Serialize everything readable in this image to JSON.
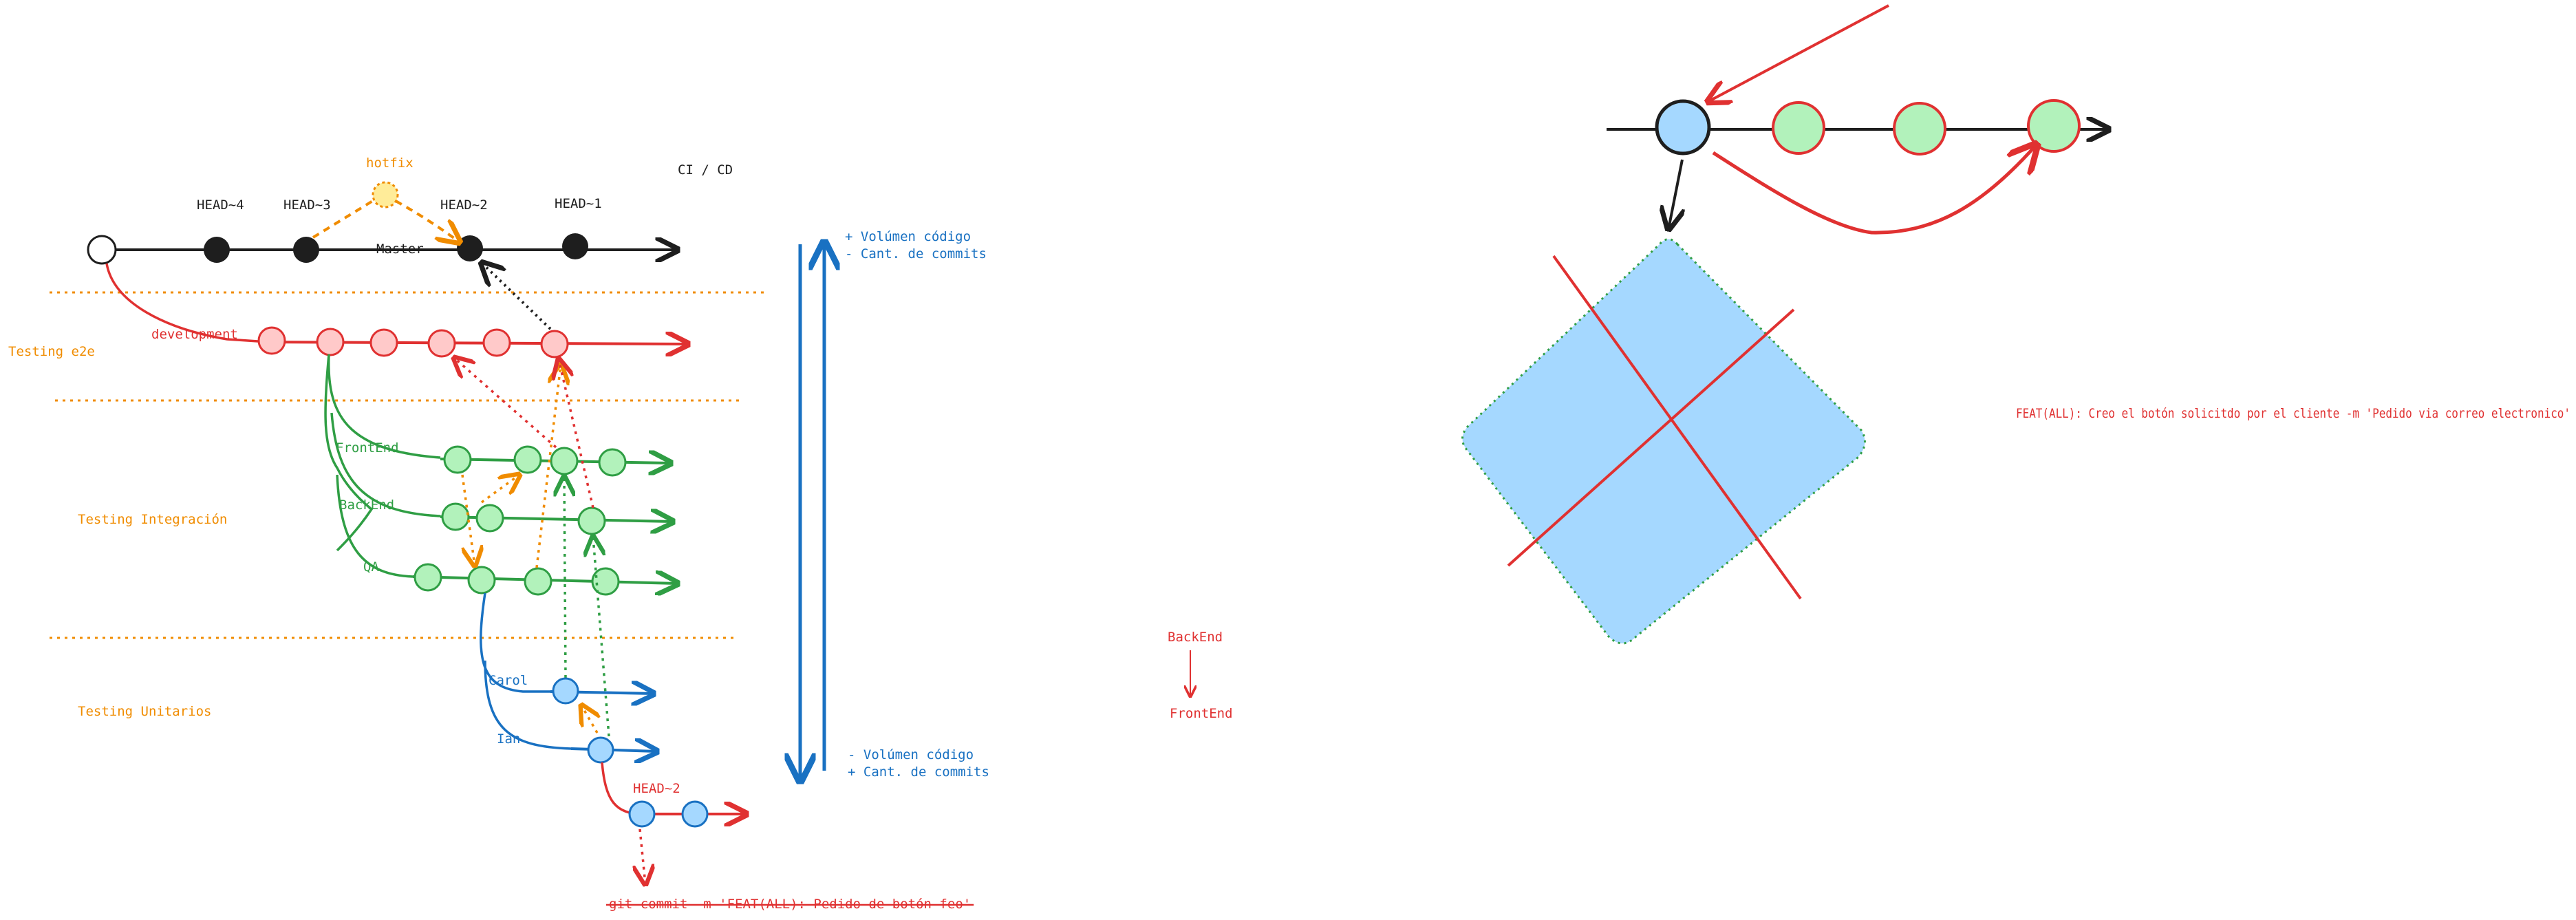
{
  "git_diagram": {
    "labels": {
      "hotfix": "hotfix",
      "ci_cd": "CI / CD",
      "head4": "HEAD~4",
      "head3": "HEAD~3",
      "head2": "HEAD~2",
      "head1": "HEAD~1",
      "master": "Master",
      "development": "development",
      "frontend": "FrontEnd",
      "backend": "BackEnd",
      "qa": "QA",
      "carol": "Carol",
      "ian": "Ian",
      "head2_bottom": "HEAD~2"
    },
    "zones": {
      "testing_e2e": "Testing e2e",
      "testing_integracion": "Testing Integración",
      "testing_unitarios": "Testing Unitarios"
    },
    "scale": {
      "top_line1": "+ Volúmen código",
      "top_line2": "- Cant. de commits",
      "bottom_line1": "- Volúmen código",
      "bottom_line2": "+ Cant. de commits"
    },
    "commit_message_struck": "git commit -m 'FEAT(ALL): Pedido de botón feo'"
  },
  "backend_frontend": {
    "from": "BackEnd",
    "to": "FrontEnd"
  },
  "commit_message": "FEAT(ALL): Creo el botón solicitdo por el cliente -m 'Pedido via correo electronico'",
  "colors": {
    "black": "#1e1e1e",
    "red": "#e03131",
    "green": "#2f9e44",
    "blue": "#1971c2",
    "orange": "#f08c00",
    "red_fill": "#ffc9c9",
    "green_fill": "#b2f2bb",
    "blue_fill": "#a5d8ff",
    "yellow_fill": "#ffec99"
  }
}
